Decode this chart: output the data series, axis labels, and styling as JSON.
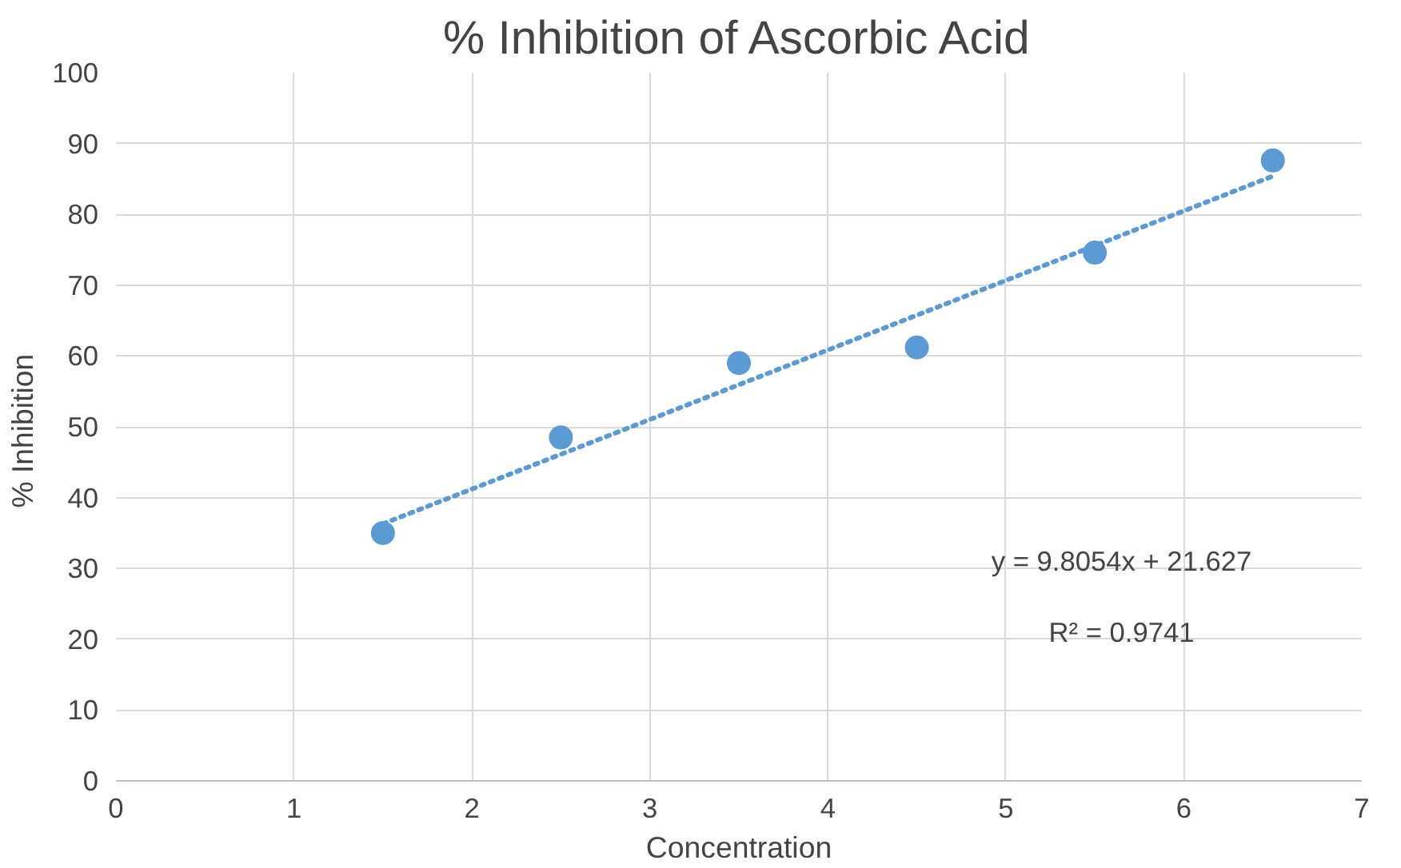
{
  "chart_data": {
    "type": "scatter",
    "title": "% Inhibition of Ascorbic Acid",
    "xlabel": "Concentration",
    "ylabel": "%  Inhibition",
    "x": [
      1.5,
      2.5,
      3.5,
      4.5,
      5.5,
      6.5
    ],
    "series": [
      {
        "color": "#5b9bd5",
        "marker": "circle",
        "values": [
          35,
          48.5,
          59,
          61.2,
          74.6,
          87.6
        ]
      },
      {
        "type": "line",
        "color": "#5b9bd5",
        "line_style": "dotted",
        "marker": "none",
        "x": [
          1.5,
          6.5
        ],
        "values": [
          36.3,
          85.4
        ]
      }
    ],
    "xlim": [
      0,
      7
    ],
    "xticks": [
      0,
      1,
      2,
      3,
      4,
      5,
      6,
      7
    ],
    "ylim": [
      0,
      100
    ],
    "yticks": [
      0,
      10,
      20,
      30,
      40,
      50,
      60,
      70,
      80,
      90,
      100
    ],
    "grid": true,
    "annotations": [
      "y = 9.8054x + 21.627",
      "R² = 0.9741"
    ]
  }
}
